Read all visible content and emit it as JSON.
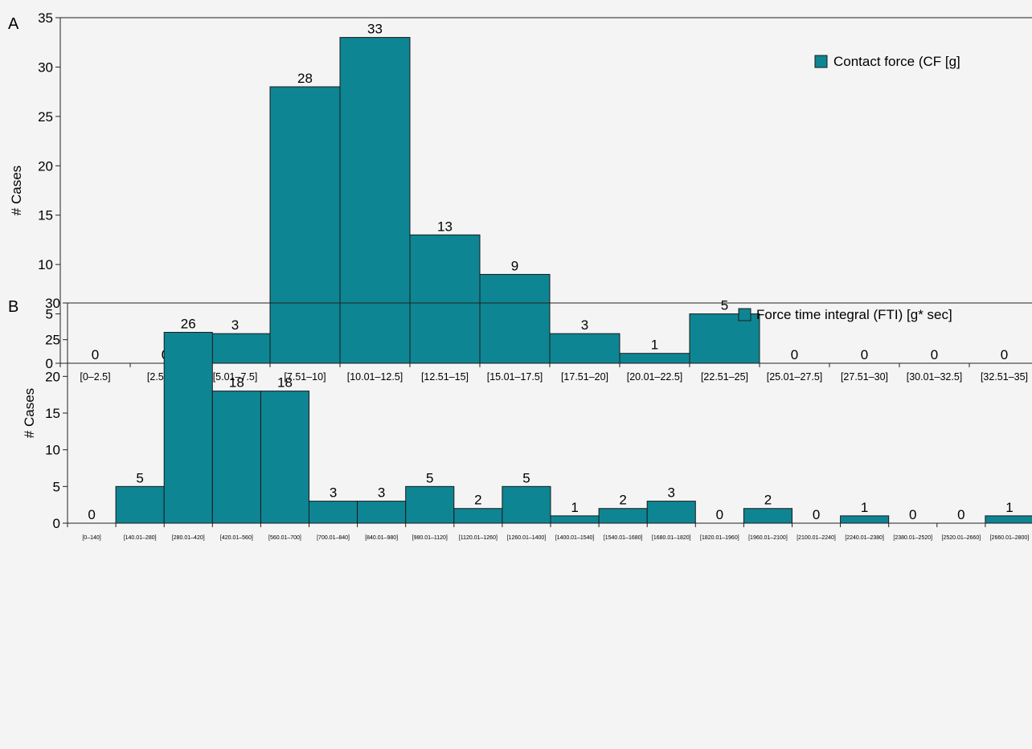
{
  "colors": {
    "bar": "#0e8593",
    "bar_stroke": "#1a1a1a",
    "axis": "#222222",
    "background": "#f4f4f4"
  },
  "chart_data": [
    {
      "panel": "A",
      "type": "bar",
      "ylabel": "# Cases",
      "xlabel": "",
      "ylim": [
        0,
        35
      ],
      "yticks": [
        0,
        5,
        10,
        15,
        20,
        25,
        30,
        35
      ],
      "legend": "Contact force (CF [g]",
      "legend_position": "top-right",
      "categories": [
        "[0–2.5]",
        "[2.51–5]",
        "[5.01–7.5]",
        "[7.51–10]",
        "[10.01–12.5]",
        "[12.51–15]",
        "[15.01–17.5]",
        "[17.51–20]",
        "[20.01–22.5]",
        "[22.51–25]",
        "[25.01–27.5]",
        "[27.51–30]",
        "[30.01–32.5]",
        "[32.51–35]"
      ],
      "values": [
        0,
        0,
        3,
        28,
        33,
        13,
        9,
        3,
        1,
        5,
        0,
        0,
        0,
        0
      ]
    },
    {
      "panel": "B",
      "type": "bar",
      "ylabel": "# Cases",
      "xlabel": "",
      "ylim": [
        0,
        30
      ],
      "yticks": [
        0,
        5,
        10,
        15,
        20,
        25,
        30
      ],
      "legend": "Force time integral (FTI) [g* sec]",
      "legend_position": "top-right",
      "categories": [
        "[0–140]",
        "[140.01–280]",
        "[280.01–420]",
        "[420.01–560]",
        "[560.01–700]",
        "[700.01–840]",
        "[840.01–980]",
        "[980.01–1120]",
        "[1120.01–1260]",
        "[1260.01–1400]",
        "[1400.01–1540]",
        "[1540.01–1680]",
        "[1680.01–1820]",
        "[1820.01–1960]",
        "[1960.01–2100]",
        "[2100.01–2240]",
        "[2240.01–2380]",
        "[2380.01–2520]",
        "[2520.01–2660]",
        "[2660.01–2800]"
      ],
      "values": [
        0,
        5,
        26,
        18,
        18,
        3,
        3,
        5,
        2,
        5,
        1,
        2,
        3,
        0,
        2,
        0,
        1,
        0,
        0,
        1
      ]
    }
  ]
}
